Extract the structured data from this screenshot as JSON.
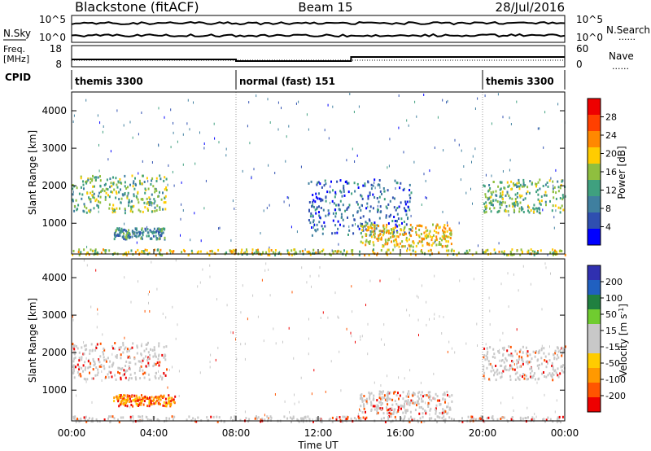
{
  "header": {
    "station": "Blackstone (fitACF)",
    "beam": "Beam 15",
    "date": "28/Jul/2016"
  },
  "top_panels": {
    "nsky_label": "N.Sky",
    "nsearch_label": "N.Search",
    "freq_label_1": "Freq.",
    "freq_label_2": "[MHz]",
    "nave_label": "Nave",
    "cpid_label": "CPID",
    "dotted": "......",
    "nsky_ticks": [
      "10^5",
      "10^0"
    ],
    "nsearch_ticks": [
      "10^5",
      "10^0"
    ],
    "freq_ticks": [
      "18",
      "8"
    ],
    "nave_ticks": [
      "60",
      "0"
    ]
  },
  "cpid_segments": [
    {
      "label": "themis 3300",
      "start_hour": 0
    },
    {
      "label": "normal (fast) 151",
      "start_hour": 8
    },
    {
      "label": "themis 3300",
      "start_hour": 20
    }
  ],
  "colors": {
    "power_scale": [
      "#0000ff",
      "#2f4fb0",
      "#3f7f9f",
      "#3fa07f",
      "#8fbf3f",
      "#ffcc00",
      "#ff8800",
      "#ff4000",
      "#ee0000"
    ],
    "velocity_scale": [
      "#3030b0",
      "#2060c0",
      "#208040",
      "#70cc30",
      "#c8c8c8",
      "#c8c8c8",
      "#ffcc00",
      "#ff9900",
      "#ff5500",
      "#ee0000"
    ]
  },
  "chart_data": [
    {
      "type": "heatmap",
      "panel": "power",
      "xlabel": "",
      "ylabel": "Slant Range [km]",
      "xlim_hours": [
        0,
        24
      ],
      "ylim": [
        180,
        4500
      ],
      "yticks": [
        "1000",
        "2000",
        "3000",
        "4000"
      ],
      "colorbar_label": "Power [dB]",
      "colorbar_ticks": [
        "4",
        "8",
        "12",
        "16",
        "20",
        "24",
        "28"
      ],
      "colorbar_range": [
        0,
        32
      ],
      "features": [
        {
          "region": "far range echo",
          "t_start": 0.0,
          "t_end": 4.6,
          "range_km": [
            1300,
            2300
          ],
          "level_db": 14
        },
        {
          "region": "mid range echo",
          "t_start": 2.0,
          "t_end": 4.5,
          "range_km": [
            600,
            900
          ],
          "level_db": 9
        },
        {
          "region": "arc echo",
          "t_start": 11.5,
          "t_end": 16.5,
          "range_km": [
            700,
            2200
          ],
          "level_db": 6
        },
        {
          "region": "near range echo",
          "t_start": 14.0,
          "t_end": 18.5,
          "range_km": [
            400,
            1000
          ],
          "level_db": 20
        },
        {
          "region": "far range echo",
          "t_start": 20.0,
          "t_end": 24.0,
          "range_km": [
            1300,
            2200
          ],
          "level_db": 14
        }
      ]
    },
    {
      "type": "heatmap",
      "panel": "velocity",
      "xlabel": "Time UT",
      "ylabel": "Slant Range [km]",
      "xlim_hours": [
        0,
        24
      ],
      "ylim": [
        180,
        4500
      ],
      "yticks": [
        "1000",
        "2000",
        "3000",
        "4000"
      ],
      "colorbar_label": "Velocity [m s^-1]",
      "colorbar_ticks": [
        "200",
        "100",
        "50",
        "15",
        "-15",
        "-50",
        "-100",
        "-200"
      ],
      "xticks": [
        "00:00",
        "04:00",
        "08:00",
        "12:00",
        "16:00",
        "20:00",
        "00:00"
      ],
      "features": [
        {
          "region": "far range echo",
          "t_start": 0.0,
          "t_end": 4.6,
          "range_km": [
            1300,
            2300
          ],
          "velocity": 0
        },
        {
          "region": "mid range echo",
          "t_start": 2.0,
          "t_end": 5.0,
          "range_km": [
            600,
            900
          ],
          "velocity": -80
        },
        {
          "region": "near range echo",
          "t_start": 14.0,
          "t_end": 18.5,
          "range_km": [
            400,
            1000
          ],
          "velocity": 0
        },
        {
          "region": "far range echo",
          "t_start": 20.0,
          "t_end": 24.0,
          "range_km": [
            1300,
            2200
          ],
          "velocity": 0
        }
      ]
    }
  ]
}
